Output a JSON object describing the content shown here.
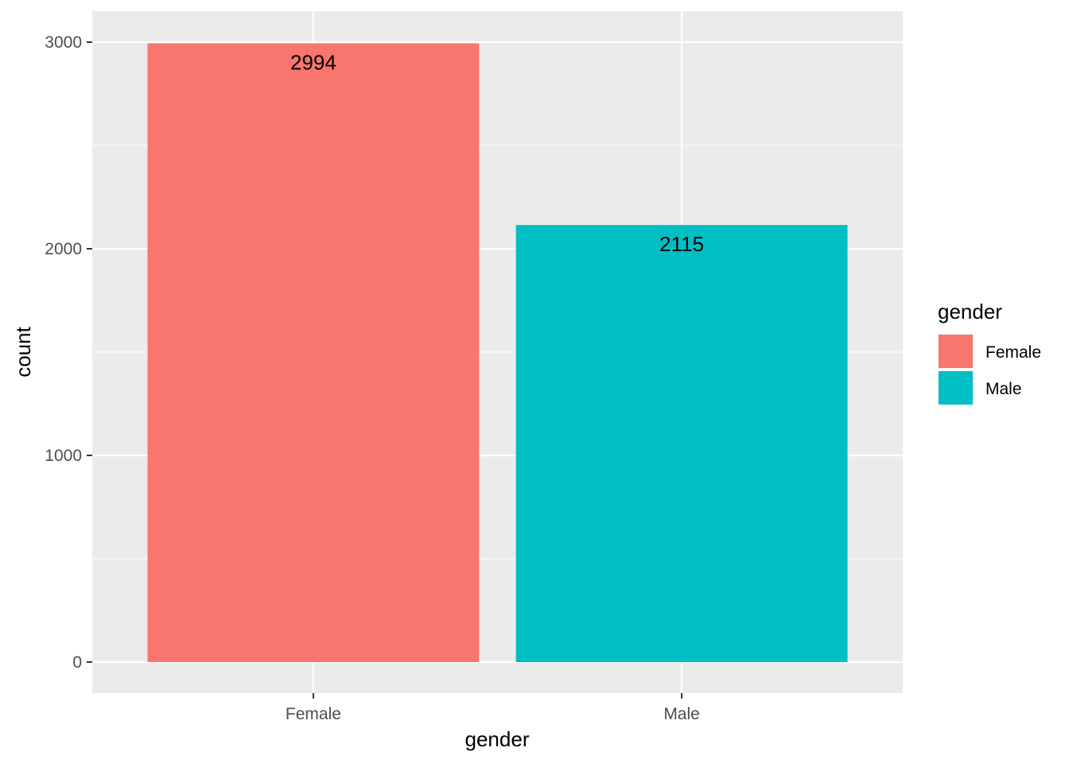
{
  "chart_data": {
    "type": "bar",
    "categories": [
      "Female",
      "Male"
    ],
    "values": [
      2994,
      2115
    ],
    "data_labels": [
      "2994",
      "2115"
    ],
    "colors": [
      "#F8766D",
      "#00BFC4"
    ],
    "xlabel": "gender",
    "ylabel": "count",
    "ylim": [
      -150,
      3150
    ],
    "yticks": [
      0,
      1000,
      2000,
      3000
    ],
    "ytick_labels": [
      "0",
      "1000",
      "2000",
      "3000"
    ],
    "ygrid_minor": [
      500,
      1500,
      2500
    ],
    "grid": true,
    "panel_background": "#EBEBEB",
    "legend": {
      "title": "gender",
      "position": "right",
      "entries": [
        "Female",
        "Male"
      ]
    }
  }
}
